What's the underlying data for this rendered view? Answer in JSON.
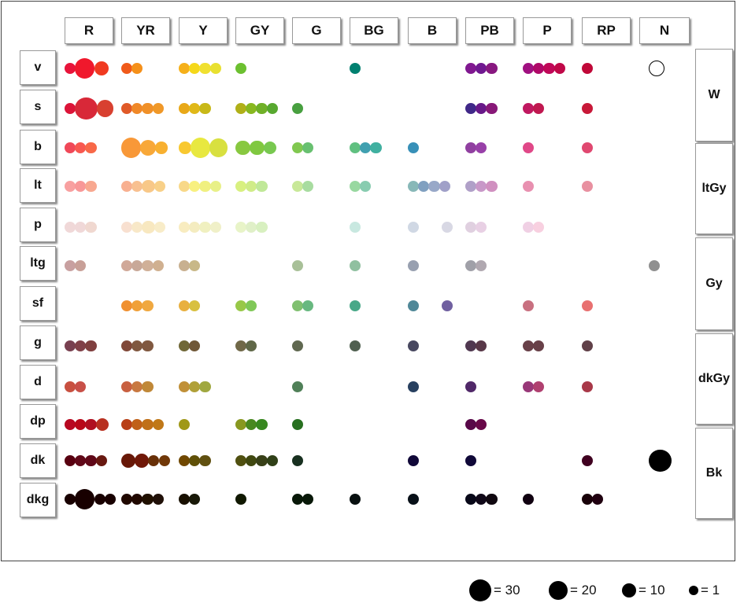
{
  "chart_data": {
    "type": "scatter",
    "title": "",
    "columns": [
      "R",
      "YR",
      "Y",
      "GY",
      "G",
      "BG",
      "B",
      "PB",
      "P",
      "RP",
      "N"
    ],
    "rows": [
      "v",
      "s",
      "b",
      "lt",
      "p",
      "ltg",
      "sf",
      "g",
      "d",
      "dp",
      "dk",
      "dkg"
    ],
    "neutral_tones": [
      "W",
      "ltGy",
      "Gy",
      "dkGy",
      "Bk"
    ],
    "legend": [
      {
        "value": 30,
        "label": "= 30"
      },
      {
        "value": 20,
        "label": "= 20"
      },
      {
        "value": 10,
        "label": "= 10"
      },
      {
        "value": 1,
        "label": "= 1"
      }
    ],
    "cells": {
      "v": {
        "R": [
          [
            "#e8143a",
            1
          ],
          [
            "#f0182c",
            20
          ],
          [
            "#f03a20",
            6
          ]
        ],
        "YR": [
          [
            "#f05a1a",
            1
          ],
          [
            "#f5901a",
            1
          ]
        ],
        "Y": [
          [
            "#f5b01a",
            1
          ],
          [
            "#f5d81a",
            1
          ],
          [
            "#f0e030",
            1
          ],
          [
            "#e8e030",
            1
          ]
        ],
        "GY": [
          [
            "#6cc030",
            1
          ]
        ],
        "BG": [
          [
            "#008070",
            1
          ]
        ],
        "PB": [
          [
            "#801890",
            1
          ],
          [
            "#701890",
            1
          ],
          [
            "#881880",
            1
          ]
        ],
        "P": [
          [
            "#a01080",
            1
          ],
          [
            "#b00868",
            1
          ],
          [
            "#c00858",
            1
          ],
          [
            "#c00848",
            1
          ]
        ],
        "RP": [
          [
            "#c00838",
            1
          ]
        ],
        "N": [
          [
            "#ffffff",
            8
          ]
        ]
      },
      "s": {
        "R": [
          [
            "#dc1438",
            1
          ],
          [
            "#d82838",
            30
          ],
          [
            "#d84030",
            10
          ]
        ],
        "YR": [
          [
            "#e05a28",
            1
          ],
          [
            "#f08828",
            1
          ],
          [
            "#f09028",
            1
          ],
          [
            "#f09828",
            1
          ]
        ],
        "Y": [
          [
            "#e8a818",
            1
          ],
          [
            "#e0b818",
            1
          ],
          [
            "#c8b818",
            1
          ]
        ],
        "GY": [
          [
            "#b0b018",
            1
          ],
          [
            "#88b820",
            1
          ],
          [
            "#70b028",
            1
          ],
          [
            "#58a830",
            1
          ]
        ],
        "G": [
          [
            "#48a040",
            1
          ]
        ],
        "PB": [
          [
            "#402888",
            1
          ],
          [
            "#681888",
            1
          ],
          [
            "#881878",
            1
          ]
        ],
        "P": [
          [
            "#c01860",
            1
          ],
          [
            "#c01850",
            1
          ]
        ],
        "RP": [
          [
            "#c81838",
            1
          ]
        ]
      },
      "b": {
        "R": [
          [
            "#f04858",
            1
          ],
          [
            "#f85850",
            1
          ],
          [
            "#f86848",
            1
          ]
        ],
        "YR": [
          [
            "#f89838",
            20
          ],
          [
            "#f8a838",
            8
          ],
          [
            "#f8b030",
            2
          ]
        ],
        "Y": [
          [
            "#f8c830",
            2
          ],
          [
            "#e8e840",
            20
          ],
          [
            "#d8e040",
            15
          ]
        ],
        "GY": [
          [
            "#88c840",
            6
          ],
          [
            "#80c840",
            6
          ],
          [
            "#78c850",
            3
          ]
        ],
        "G": [
          [
            "#80c850",
            1
          ],
          [
            "#68c070",
            1
          ]
        ],
        "BG": [
          [
            "#60c080",
            1
          ],
          [
            "#40a0b0",
            1
          ],
          [
            "#40b0a0",
            1
          ]
        ],
        "B": [
          [
            "#3890b8",
            1
          ]
        ],
        "PB": [
          [
            "#9040a0",
            1
          ],
          [
            "#9840a8",
            1
          ]
        ],
        "P": [
          [
            "#e04888",
            1
          ]
        ],
        "RP": [
          [
            "#e04870",
            1
          ]
        ]
      },
      "lt": {
        "R": [
          [
            "#f8a0a0",
            1
          ],
          [
            "#f89898",
            1
          ],
          [
            "#f8a890",
            1
          ]
        ],
        "YR": [
          [
            "#f8b090",
            1
          ],
          [
            "#f8c090",
            1
          ],
          [
            "#f8c888",
            3
          ],
          [
            "#f8d088",
            1
          ]
        ],
        "Y": [
          [
            "#f8d888",
            1
          ],
          [
            "#f8f080",
            1
          ],
          [
            "#f0f080",
            1
          ],
          [
            "#e8f088",
            1
          ]
        ],
        "GY": [
          [
            "#d8f080",
            1
          ],
          [
            "#d0ec88",
            1
          ],
          [
            "#c0e898",
            1
          ]
        ],
        "G": [
          [
            "#c8e898",
            1
          ],
          [
            "#a8dca0",
            1
          ]
        ],
        "BG": [
          [
            "#98d8a0",
            1
          ],
          [
            "#88ccb0",
            1
          ]
        ],
        "B": [
          [
            "#88b8b8",
            1
          ],
          [
            "#80a0c0",
            1
          ],
          [
            "#98a8c8",
            1
          ],
          [
            "#a0a0c8",
            1
          ]
        ],
        "PB": [
          [
            "#b0a0c8",
            1
          ],
          [
            "#c898c8",
            1
          ],
          [
            "#d090c0",
            1
          ]
        ],
        "P": [
          [
            "#e890b0",
            1
          ]
        ],
        "RP": [
          [
            "#e890a0",
            1
          ]
        ]
      },
      "p": {
        "R": [
          [
            "#f0d8d8",
            1
          ],
          [
            "#f0d8d8",
            1
          ],
          [
            "#f0d8d0",
            1
          ]
        ],
        "YR": [
          [
            "#f8e0d0",
            1
          ],
          [
            "#f8e8c8",
            1
          ],
          [
            "#f8e8c0",
            3
          ],
          [
            "#f8ecc8",
            1
          ]
        ],
        "Y": [
          [
            "#f8ecc0",
            1
          ],
          [
            "#f4ecc0",
            1
          ],
          [
            "#f0f0c0",
            1
          ],
          [
            "#f0f0c8",
            1
          ]
        ],
        "GY": [
          [
            "#e8f4c8",
            1
          ],
          [
            "#e0f0c8",
            1
          ],
          [
            "#d8f0c0",
            1
          ]
        ],
        "BG": [
          [
            "#c8e8e0",
            1
          ]
        ],
        "B": [
          [
            "#d0d8e4",
            1
          ],
          null,
          [
            "#d8d8e4",
            1
          ]
        ],
        "PB": [
          [
            "#e0d0e0",
            1
          ],
          [
            "#e8d0e4",
            1
          ]
        ],
        "P": [
          [
            "#f0d0e4",
            1
          ],
          [
            "#f8d0e0",
            1
          ]
        ]
      },
      "ltg": {
        "R": [
          [
            "#c8a0a0",
            1
          ],
          [
            "#c8a098",
            1
          ]
        ],
        "YR": [
          [
            "#d0a898",
            1
          ],
          [
            "#c8a898",
            1
          ],
          [
            "#d0b098",
            1
          ],
          [
            "#d0b090",
            1
          ]
        ],
        "Y": [
          [
            "#c8b090",
            1
          ],
          [
            "#c8b888",
            1
          ]
        ],
        "G": [
          [
            "#a8c098",
            1
          ]
        ],
        "BG": [
          [
            "#90c0a0",
            1
          ]
        ],
        "B": [
          [
            "#98a0b0",
            1
          ]
        ],
        "PB": [
          [
            "#a0a0a8",
            1
          ],
          [
            "#b0a8b0",
            1
          ]
        ],
        "N": [
          [
            "#909090",
            1
          ]
        ]
      },
      "sf": {
        "YR": [
          [
            "#f09030",
            1
          ],
          [
            "#f0a038",
            1
          ],
          [
            "#f0a840",
            1
          ]
        ],
        "Y": [
          [
            "#e8b040",
            1
          ],
          [
            "#d8c040",
            1
          ]
        ],
        "GY": [
          [
            "#98c848",
            1
          ],
          [
            "#80c858",
            1
          ]
        ],
        "G": [
          [
            "#80c070",
            1
          ],
          [
            "#68b880",
            1
          ]
        ],
        "BG": [
          [
            "#48a888",
            1
          ]
        ],
        "B": [
          [
            "#508898",
            1
          ],
          null,
          [
            "#7060a0",
            1
          ]
        ],
        "P": [
          [
            "#c87080",
            1
          ]
        ],
        "RP": [
          [
            "#e87070",
            1
          ]
        ]
      },
      "g": {
        "R": [
          [
            "#784050",
            1
          ],
          [
            "#804048",
            1
          ],
          [
            "#804040",
            1
          ]
        ],
        "YR": [
          [
            "#804838",
            1
          ],
          [
            "#805840",
            1
          ],
          [
            "#805840",
            1
          ]
        ],
        "Y": [
          [
            "#706838",
            1
          ],
          [
            "#705838",
            1
          ]
        ],
        "GY": [
          [
            "#706848",
            1
          ],
          [
            "#606848",
            1
          ]
        ],
        "G": [
          [
            "#606850",
            1
          ]
        ],
        "BG": [
          [
            "#506050",
            1
          ]
        ],
        "B": [
          [
            "#484860",
            1
          ]
        ],
        "PB": [
          [
            "#503850",
            1
          ],
          [
            "#583848",
            1
          ]
        ],
        "P": [
          [
            "#684048",
            1
          ],
          [
            "#684048",
            1
          ]
        ],
        "RP": [
          [
            "#604048",
            1
          ]
        ]
      },
      "d": {
        "R": [
          [
            "#c85040",
            1
          ],
          [
            "#c85048",
            1
          ]
        ],
        "YR": [
          [
            "#c86040",
            1
          ],
          [
            "#c87840",
            1
          ],
          [
            "#c08838",
            1
          ]
        ],
        "Y": [
          [
            "#c09038",
            1
          ],
          [
            "#b0a038",
            1
          ],
          [
            "#a0a840",
            1
          ]
        ],
        "G": [
          [
            "#508058",
            1
          ]
        ],
        "B": [
          [
            "#284060",
            1
          ]
        ],
        "PB": [
          [
            "#502868",
            1
          ]
        ],
        "P": [
          [
            "#983878",
            1
          ],
          [
            "#b04070",
            1
          ]
        ],
        "RP": [
          [
            "#a83848",
            1
          ]
        ]
      },
      "dp": {
        "R": [
          [
            "#b80820",
            1
          ],
          [
            "#b80818",
            1
          ],
          [
            "#b01020",
            1
          ],
          [
            "#b83020",
            3
          ]
        ],
        "YR": [
          [
            "#b84018",
            1
          ],
          [
            "#c06018",
            1
          ],
          [
            "#c07018",
            1
          ],
          [
            "#c07818",
            1
          ]
        ],
        "Y": [
          [
            "#a09818",
            1
          ]
        ],
        "GY": [
          [
            "#889820",
            1
          ],
          [
            "#488820",
            1
          ],
          [
            "#388820",
            1
          ]
        ],
        "G": [
          [
            "#287020",
            1
          ]
        ],
        "PB": [
          [
            "#580848",
            1
          ],
          [
            "#680848",
            1
          ]
        ]
      },
      "dk": {
        "R": [
          [
            "#580010",
            1
          ],
          [
            "#600818",
            1
          ],
          [
            "#600818",
            1
          ],
          [
            "#681810",
            1
          ]
        ],
        "YR": [
          [
            "#681808",
            5
          ],
          [
            "#701808",
            5
          ],
          [
            "#683008",
            1
          ],
          [
            "#703808",
            1
          ]
        ],
        "Y": [
          [
            "#704800",
            1
          ],
          [
            "#605008",
            1
          ],
          [
            "#605010",
            1
          ]
        ],
        "GY": [
          [
            "#505010",
            1
          ],
          [
            "#404810",
            1
          ],
          [
            "#384018",
            1
          ],
          [
            "#304018",
            1
          ]
        ],
        "G": [
          [
            "#183020",
            1
          ]
        ],
        "B": [
          [
            "#100838",
            1
          ]
        ],
        "PB": [
          [
            "#100838",
            1
          ]
        ],
        "RP": [
          [
            "#400020",
            1
          ]
        ],
        "N": [
          [
            "#000000",
            30
          ]
        ]
      },
      "dkg": {
        "R": [
          [
            "#180000",
            1
          ],
          [
            "#180000",
            20
          ],
          [
            "#180000",
            1
          ],
          [
            "#180000",
            1
          ]
        ],
        "YR": [
          [
            "#200800",
            1
          ],
          [
            "#200800",
            1
          ],
          [
            "#201000",
            1
          ],
          [
            "#201008",
            1
          ]
        ],
        "Y": [
          [
            "#181000",
            1
          ],
          [
            "#181808",
            1
          ]
        ],
        "GY": [
          [
            "#101800",
            1
          ]
        ],
        "G": [
          [
            "#081808",
            1
          ],
          [
            "#081808",
            1
          ]
        ],
        "BG": [
          [
            "#081010",
            1
          ]
        ],
        "B": [
          [
            "#081018",
            1
          ]
        ],
        "PB": [
          [
            "#080818",
            1
          ],
          [
            "#100818",
            1
          ],
          [
            "#100810",
            1
          ]
        ],
        "P": [
          [
            "#100010",
            1
          ]
        ],
        "RP": [
          [
            "#180008",
            1
          ],
          [
            "#200010",
            1
          ]
        ]
      }
    }
  }
}
